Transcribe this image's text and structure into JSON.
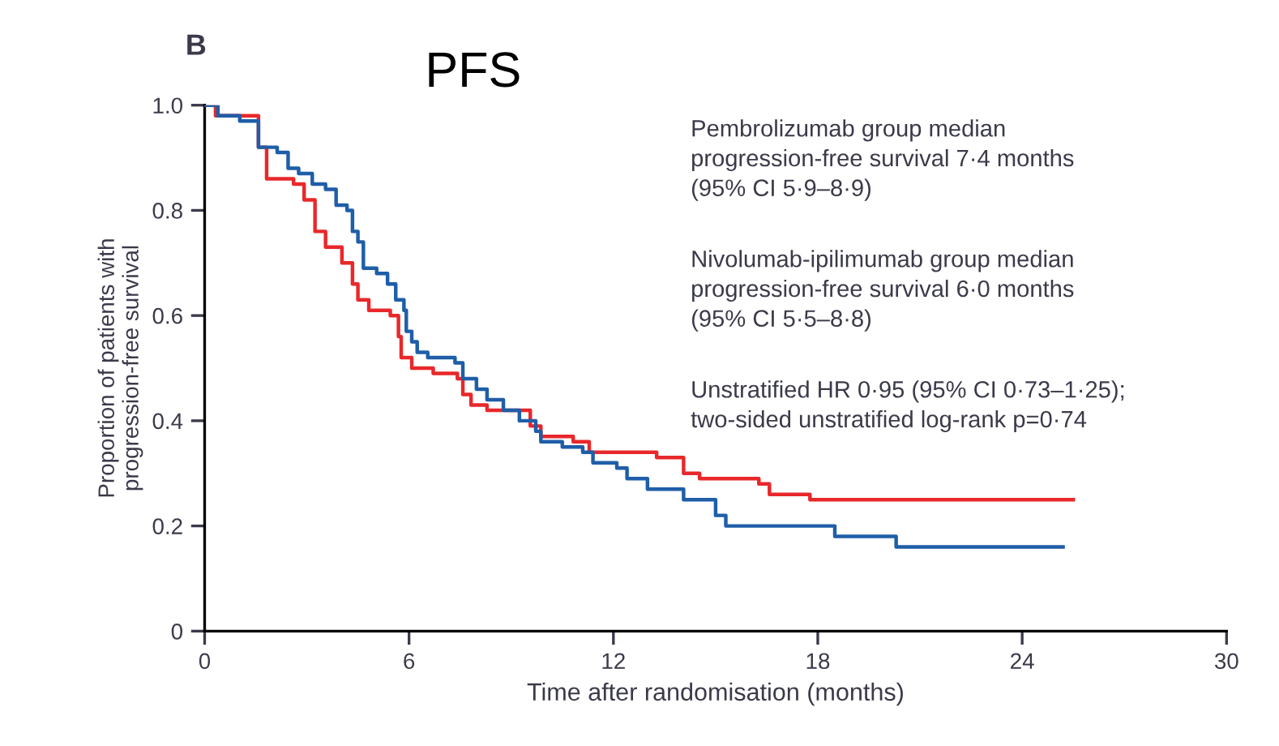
{
  "chart_data": {
    "type": "step",
    "title": "PFS",
    "xlabel": "Time after randomisation (months)",
    "ylabel": "Proportion of patients with\nprogression-free survival",
    "annotations": [
      "B",
      "Pembrolizumab group median\nprogression-free survival 7·4 months\n(95% CI 5·9–8·9)",
      "Nivolumab-ipilimumab group median\nprogression-free survival 6·0 months\n(95% CI 5·5–8·8)",
      "Unstratified HR 0·95 (95% CI 0·73–1·25);\ntwo-sided unstratified log-rank p=0·74"
    ],
    "series": [
      {
        "color": "#1f5ea8",
        "x": [
          0,
          0.39,
          1.03,
          1.58,
          2.13,
          2.45,
          2.76,
          3.16,
          3.55,
          3.86,
          4.18,
          4.34,
          4.5,
          4.66,
          5.05,
          5.37,
          5.61,
          5.85,
          5.92,
          6.08,
          6.24,
          6.55,
          7.35,
          7.58,
          7.98,
          8.29,
          8.77,
          9.24,
          9.72,
          9.87,
          10.5,
          11.1,
          11.4,
          12.1,
          12.4,
          13.0,
          14.06,
          15.0,
          15.3,
          18.5,
          20.3,
          25.2
        ],
        "values": [
          1.0,
          0.98,
          0.97,
          0.92,
          0.91,
          0.88,
          0.87,
          0.85,
          0.84,
          0.81,
          0.8,
          0.76,
          0.74,
          0.69,
          0.68,
          0.66,
          0.63,
          0.61,
          0.57,
          0.55,
          0.53,
          0.52,
          0.51,
          0.48,
          0.46,
          0.44,
          0.42,
          0.4,
          0.38,
          0.36,
          0.35,
          0.34,
          0.32,
          0.31,
          0.29,
          0.27,
          0.25,
          0.22,
          0.2,
          0.18,
          0.16,
          0.16
        ]
      },
      {
        "color": "#e8282b",
        "x": [
          0,
          0.32,
          1.34,
          1.58,
          1.82,
          2.61,
          2.92,
          3.24,
          3.55,
          4.03,
          4.34,
          4.5,
          4.82,
          5.45,
          5.69,
          5.77,
          6.08,
          6.71,
          7.42,
          7.58,
          7.82,
          8.29,
          9.56,
          9.87,
          10.82,
          11.29,
          13.27,
          14.06,
          14.53,
          16.27,
          16.58,
          17.77,
          25.5
        ],
        "values": [
          1.0,
          0.98,
          0.98,
          0.92,
          0.86,
          0.85,
          0.82,
          0.76,
          0.73,
          0.7,
          0.66,
          0.63,
          0.61,
          0.6,
          0.56,
          0.52,
          0.5,
          0.49,
          0.48,
          0.45,
          0.43,
          0.42,
          0.39,
          0.37,
          0.36,
          0.34,
          0.33,
          0.3,
          0.29,
          0.28,
          0.26,
          0.25,
          0.25
        ]
      }
    ],
    "xlim": [
      0,
      30
    ],
    "ylim": [
      0,
      1
    ],
    "xticks": [
      0,
      6,
      12,
      18,
      24,
      30
    ],
    "yticks": [
      0,
      {
        "value": 0.2,
        "label": "0.2"
      },
      {
        "value": 0.4,
        "label": "0.4"
      },
      {
        "value": 0.6,
        "label": "0.6"
      },
      {
        "value": 0.8,
        "label": "0.8"
      },
      {
        "value": 1.0,
        "label": "1.0"
      }
    ],
    "grid": false
  }
}
